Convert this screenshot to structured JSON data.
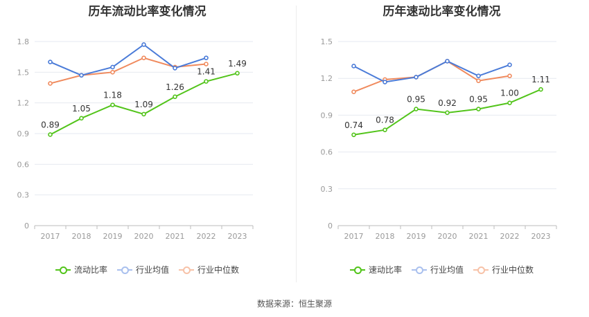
{
  "source_text": "数据来源：恒生聚源",
  "colors": {
    "primary": "#52c41a",
    "average": "#4a7bd8",
    "median": "#f08a5d",
    "grid": "#e6e9f0",
    "axis": "#999999"
  },
  "chart_data": [
    {
      "type": "line",
      "title": "历年流动比率变化情况",
      "categories": [
        "2017",
        "2018",
        "2019",
        "2020",
        "2021",
        "2022",
        "2023"
      ],
      "ylim": [
        0,
        1.8
      ],
      "yticks": [
        "0",
        "0.3",
        "0.6",
        "0.9",
        "1.2",
        "1.5",
        "1.8"
      ],
      "ytick_values": [
        0,
        0.3,
        0.6,
        0.9,
        1.2,
        1.5,
        1.8
      ],
      "series": [
        {
          "name": "流动比率",
          "color": "#52c41a",
          "values": [
            0.89,
            1.05,
            1.18,
            1.09,
            1.26,
            1.41,
            1.49
          ],
          "labels": [
            "0.89",
            "1.05",
            "1.18",
            "1.09",
            "1.26",
            "1.41",
            "1.49"
          ]
        },
        {
          "name": "行业均值",
          "color": "#4a7bd8",
          "values": [
            1.6,
            1.47,
            1.55,
            1.77,
            1.54,
            1.64,
            null
          ]
        },
        {
          "name": "行业中位数",
          "color": "#f08a5d",
          "values": [
            1.39,
            1.47,
            1.5,
            1.64,
            1.55,
            1.58,
            null
          ]
        }
      ]
    },
    {
      "type": "line",
      "title": "历年速动比率变化情况",
      "categories": [
        "2017",
        "2018",
        "2019",
        "2020",
        "2021",
        "2022",
        "2023"
      ],
      "ylim": [
        0,
        1.5
      ],
      "yticks": [
        "0",
        "0.3",
        "0.6",
        "0.9",
        "1.2",
        "1.5"
      ],
      "ytick_values": [
        0,
        0.3,
        0.6,
        0.9,
        1.2,
        1.5
      ],
      "series": [
        {
          "name": "速动比率",
          "color": "#52c41a",
          "values": [
            0.74,
            0.78,
            0.95,
            0.92,
            0.95,
            1.0,
            1.11
          ],
          "labels": [
            "0.74",
            "0.78",
            "0.95",
            "0.92",
            "0.95",
            "1.00",
            "1.11"
          ]
        },
        {
          "name": "行业均值",
          "color": "#4a7bd8",
          "values": [
            1.3,
            1.17,
            1.21,
            1.34,
            1.22,
            1.31,
            null
          ]
        },
        {
          "name": "行业中位数",
          "color": "#f08a5d",
          "values": [
            1.09,
            1.19,
            1.21,
            1.34,
            1.18,
            1.22,
            null
          ]
        }
      ]
    }
  ]
}
